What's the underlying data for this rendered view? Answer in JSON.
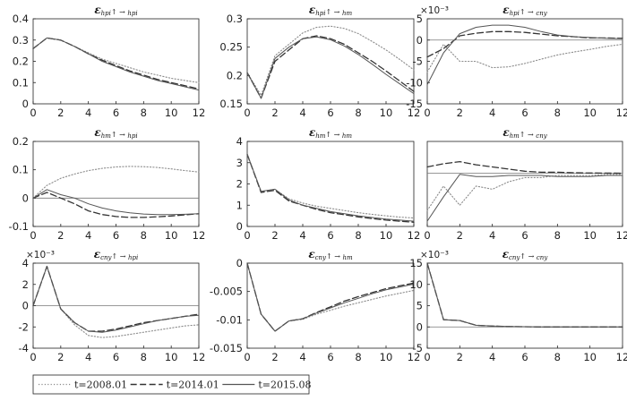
{
  "chart_data": [
    {
      "type": "line",
      "title": "ε_hpi↑→hpi",
      "title_sym": "ε",
      "title_sub": "hpi",
      "title_arrow": "↑ → ",
      "title_resp": "hpi",
      "xlim": [
        0,
        12
      ],
      "ylim": [
        0,
        0.4
      ],
      "yticks": [
        "0",
        "0.1",
        "0.2",
        "0.3",
        "0.4"
      ],
      "ytick_values": [
        0,
        0.1,
        0.2,
        0.3,
        0.4
      ],
      "xticks": [
        "0",
        "2",
        "4",
        "6",
        "8",
        "10",
        "12"
      ],
      "scale_label": "",
      "zero_line": false,
      "x": [
        0,
        1,
        2,
        3,
        4,
        5,
        6,
        7,
        8,
        9,
        10,
        11,
        12
      ],
      "series": [
        {
          "name": "t=2008.01",
          "values": [
            0.26,
            0.31,
            0.3,
            0.27,
            0.24,
            0.21,
            0.19,
            0.17,
            0.15,
            0.135,
            0.12,
            0.11,
            0.1
          ]
        },
        {
          "name": "t=2014.01",
          "values": [
            0.26,
            0.31,
            0.3,
            0.27,
            0.235,
            0.205,
            0.18,
            0.155,
            0.135,
            0.115,
            0.1,
            0.085,
            0.07
          ]
        },
        {
          "name": "t=2015.08",
          "values": [
            0.26,
            0.31,
            0.3,
            0.27,
            0.235,
            0.2,
            0.175,
            0.15,
            0.13,
            0.11,
            0.095,
            0.08,
            0.065
          ]
        }
      ]
    },
    {
      "type": "line",
      "title": "ε_hpi↑→hm",
      "title_sym": "ε",
      "title_sub": "hpi",
      "title_arrow": "↑ → ",
      "title_resp": "hm",
      "xlim": [
        0,
        12
      ],
      "ylim": [
        0.15,
        0.3
      ],
      "yticks": [
        "0.15",
        "0.2",
        "0.25",
        "0.3"
      ],
      "ytick_values": [
        0.15,
        0.2,
        0.25,
        0.3
      ],
      "xticks": [
        "0",
        "2",
        "4",
        "6",
        "8",
        "10",
        "12"
      ],
      "scale_label": "",
      "zero_line": false,
      "x": [
        0,
        1,
        2,
        3,
        4,
        5,
        6,
        7,
        8,
        9,
        10,
        11,
        12
      ],
      "series": [
        {
          "name": "t=2008.01",
          "values": [
            0.205,
            0.165,
            0.235,
            0.255,
            0.275,
            0.285,
            0.287,
            0.283,
            0.274,
            0.26,
            0.245,
            0.228,
            0.21
          ]
        },
        {
          "name": "t=2014.01",
          "values": [
            0.205,
            0.16,
            0.225,
            0.245,
            0.265,
            0.27,
            0.265,
            0.255,
            0.24,
            0.225,
            0.208,
            0.19,
            0.172
          ]
        },
        {
          "name": "t=2015.08",
          "values": [
            0.205,
            0.16,
            0.23,
            0.25,
            0.265,
            0.268,
            0.263,
            0.252,
            0.237,
            0.22,
            0.202,
            0.185,
            0.168
          ]
        }
      ]
    },
    {
      "type": "line",
      "title": "ε_hpi↑→cny",
      "title_sym": "ε",
      "title_sub": "hpi",
      "title_arrow": "↑ → ",
      "title_resp": "cny",
      "xlim": [
        0,
        12
      ],
      "ylim": [
        -15,
        5
      ],
      "yticks": [
        "-15",
        "-10",
        "-5",
        "0",
        "5"
      ],
      "ytick_values": [
        -15,
        -10,
        -5,
        0,
        5
      ],
      "xticks": [
        "0",
        "2",
        "4",
        "6",
        "8",
        "10",
        "12"
      ],
      "scale_label": "×10⁻³",
      "zero_line": true,
      "x": [
        0,
        1,
        2,
        3,
        4,
        5,
        6,
        7,
        8,
        9,
        10,
        11,
        12
      ],
      "series": [
        {
          "name": "t=2008.01",
          "values": [
            -7.5,
            -1,
            -5,
            -5,
            -6.5,
            -6.3,
            -5.5,
            -4.5,
            -3.5,
            -2.8,
            -2.2,
            -1.5,
            -1
          ]
        },
        {
          "name": "t=2014.01",
          "values": [
            -4,
            -2,
            1,
            1.6,
            2,
            2,
            1.8,
            1.4,
            1,
            0.8,
            0.5,
            0.5,
            0.4
          ]
        },
        {
          "name": "t=2015.08",
          "values": [
            -10.5,
            -3,
            1.5,
            3,
            3.5,
            3.5,
            3,
            2,
            1.2,
            0.8,
            0.6,
            0.4,
            0.3
          ]
        }
      ]
    },
    {
      "type": "line",
      "title": "ε_hm↑→hpi",
      "title_sym": "ε",
      "title_sub": "hm",
      "title_arrow": "↑ → ",
      "title_resp": "hpi",
      "xlim": [
        0,
        12
      ],
      "ylim": [
        -0.1,
        0.2
      ],
      "yticks": [
        "-0.1",
        "0",
        "0.1",
        "0.2"
      ],
      "ytick_values": [
        -0.1,
        0,
        0.1,
        0.2
      ],
      "xticks": [
        "0",
        "2",
        "4",
        "6",
        "8",
        "10",
        "12"
      ],
      "scale_label": "",
      "zero_line": true,
      "x": [
        0,
        1,
        2,
        3,
        4,
        5,
        6,
        7,
        8,
        9,
        10,
        11,
        12
      ],
      "series": [
        {
          "name": "t=2008.01",
          "values": [
            0,
            0.045,
            0.07,
            0.085,
            0.097,
            0.105,
            0.11,
            0.112,
            0.111,
            0.108,
            0.103,
            0.097,
            0.092
          ]
        },
        {
          "name": "t=2014.01",
          "values": [
            0,
            0.02,
            0,
            -0.02,
            -0.045,
            -0.058,
            -0.065,
            -0.068,
            -0.068,
            -0.066,
            -0.063,
            -0.059,
            -0.055
          ]
        },
        {
          "name": "t=2015.08",
          "values": [
            0,
            0.03,
            0.012,
            0,
            -0.02,
            -0.035,
            -0.045,
            -0.052,
            -0.056,
            -0.058,
            -0.058,
            -0.057,
            -0.055
          ]
        }
      ]
    },
    {
      "type": "line",
      "title": "ε_hm↑→hm",
      "title_sym": "ε",
      "title_sub": "hm",
      "title_arrow": "↑ → ",
      "title_resp": "hm",
      "xlim": [
        0,
        12
      ],
      "ylim": [
        0,
        4
      ],
      "yticks": [
        "0",
        "1",
        "2",
        "3",
        "4"
      ],
      "ytick_values": [
        0,
        1,
        2,
        3,
        4
      ],
      "xticks": [
        "0",
        "2",
        "4",
        "6",
        "8",
        "10",
        "12"
      ],
      "scale_label": "",
      "zero_line": false,
      "x": [
        0,
        1,
        2,
        3,
        4,
        5,
        6,
        7,
        8,
        9,
        10,
        11,
        12
      ],
      "series": [
        {
          "name": "t=2008.01",
          "values": [
            3.4,
            1.65,
            1.75,
            1.3,
            1.1,
            0.95,
            0.85,
            0.75,
            0.65,
            0.57,
            0.5,
            0.44,
            0.4
          ]
        },
        {
          "name": "t=2014.01",
          "values": [
            3.4,
            1.6,
            1.7,
            1.2,
            1.0,
            0.8,
            0.65,
            0.55,
            0.45,
            0.37,
            0.3,
            0.25,
            0.2
          ]
        },
        {
          "name": "t=2015.08",
          "values": [
            3.4,
            1.65,
            1.75,
            1.25,
            1.0,
            0.85,
            0.7,
            0.6,
            0.5,
            0.42,
            0.35,
            0.3,
            0.25
          ]
        }
      ]
    },
    {
      "type": "line",
      "title": "ε_hm↑→cny",
      "title_sym": "ε",
      "title_sub": "hm",
      "title_arrow": "↑ → ",
      "title_resp": "cny",
      "xlim": [
        0,
        12
      ],
      "ylim": [
        -0.05,
        0.03
      ],
      "yticks": [],
      "ytick_values": [],
      "xticks": [
        "0",
        "2",
        "4",
        "6",
        "8",
        "10",
        "12"
      ],
      "scale_label": "",
      "zero_line": true,
      "x": [
        0,
        1,
        2,
        3,
        4,
        5,
        6,
        7,
        8,
        9,
        10,
        11,
        12
      ],
      "series": [
        {
          "name": "t=2008.01",
          "values": [
            -0.035,
            -0.012,
            -0.03,
            -0.012,
            -0.015,
            -0.008,
            -0.004,
            -0.004,
            -0.002,
            -0.002,
            -0.002,
            -0.001,
            -0.001
          ]
        },
        {
          "name": "t=2014.01",
          "values": [
            0.006,
            0.009,
            0.011,
            0.008,
            0.006,
            0.004,
            0.002,
            0.001,
            0.001,
            0.0005,
            0.0003,
            0.0002,
            0.0001
          ]
        },
        {
          "name": "t=2015.08",
          "values": [
            -0.045,
            -0.022,
            -0.001,
            -0.003,
            -0.003,
            -0.002,
            -0.002,
            -0.002,
            -0.003,
            -0.003,
            -0.003,
            -0.002,
            -0.002
          ]
        }
      ]
    },
    {
      "type": "line",
      "title": "ε_cny↑→hpi",
      "title_sym": "ε",
      "title_sub": "cny",
      "title_arrow": "↑ → ",
      "title_resp": "hpi",
      "xlim": [
        0,
        12
      ],
      "ylim": [
        -4,
        4
      ],
      "yticks": [
        "-4",
        "-2",
        "0",
        "2",
        "4"
      ],
      "ytick_values": [
        -4,
        -2,
        0,
        2,
        4
      ],
      "xticks": [
        "0",
        "2",
        "4",
        "6",
        "8",
        "10",
        "12"
      ],
      "scale_label": "×10⁻³",
      "zero_line": true,
      "x": [
        0,
        1,
        2,
        3,
        4,
        5,
        6,
        7,
        8,
        9,
        10,
        11,
        12
      ],
      "series": [
        {
          "name": "t=2008.01",
          "values": [
            0,
            3.7,
            -0.3,
            -1.8,
            -2.8,
            -3.0,
            -2.9,
            -2.7,
            -2.5,
            -2.3,
            -2.1,
            -1.9,
            -1.8
          ]
        },
        {
          "name": "t=2014.01",
          "values": [
            0,
            3.7,
            -0.3,
            -1.6,
            -2.4,
            -2.4,
            -2.2,
            -1.9,
            -1.6,
            -1.4,
            -1.2,
            -1.0,
            -0.8
          ]
        },
        {
          "name": "t=2015.08",
          "values": [
            0,
            3.7,
            -0.3,
            -1.6,
            -2.4,
            -2.5,
            -2.3,
            -2.0,
            -1.7,
            -1.4,
            -1.2,
            -1.0,
            -0.9
          ]
        }
      ]
    },
    {
      "type": "line",
      "title": "ε_cny↑→hm",
      "title_sym": "ε",
      "title_sub": "cny",
      "title_arrow": "↑ → ",
      "title_resp": "hm",
      "xlim": [
        0,
        12
      ],
      "ylim": [
        -0.015,
        0
      ],
      "yticks": [
        "-0.015",
        "-0.01",
        "-0.005",
        "0"
      ],
      "ytick_values": [
        -0.015,
        -0.01,
        -0.005,
        0
      ],
      "xticks": [
        "0",
        "2",
        "4",
        "6",
        "8",
        "10",
        "12"
      ],
      "scale_label": "",
      "zero_line": false,
      "x": [
        0,
        1,
        2,
        3,
        4,
        5,
        6,
        7,
        8,
        9,
        10,
        11,
        12
      ],
      "series": [
        {
          "name": "t=2008.01",
          "values": [
            0,
            -0.009,
            -0.012,
            -0.0102,
            -0.0099,
            -0.009,
            -0.0083,
            -0.0076,
            -0.007,
            -0.0064,
            -0.0058,
            -0.0053,
            -0.0048
          ]
        },
        {
          "name": "t=2014.01",
          "values": [
            0,
            -0.009,
            -0.012,
            -0.0102,
            -0.0098,
            -0.0087,
            -0.0077,
            -0.0067,
            -0.0059,
            -0.0052,
            -0.0045,
            -0.004,
            -0.0035
          ]
        },
        {
          "name": "t=2015.08",
          "values": [
            0,
            -0.009,
            -0.012,
            -0.0102,
            -0.0098,
            -0.0088,
            -0.0079,
            -0.007,
            -0.0062,
            -0.0054,
            -0.0047,
            -0.0042,
            -0.0037
          ]
        }
      ]
    },
    {
      "type": "line",
      "title": "ε_cny↑→cny",
      "title_sym": "ε",
      "title_sub": "cny",
      "title_arrow": "↑ → ",
      "title_resp": "cny",
      "xlim": [
        0,
        12
      ],
      "ylim": [
        -5,
        15
      ],
      "yticks": [
        "-5",
        "0",
        "5",
        "10",
        "15"
      ],
      "ytick_values": [
        -5,
        0,
        5,
        10,
        15
      ],
      "xticks": [
        "0",
        "2",
        "4",
        "6",
        "8",
        "10",
        "12"
      ],
      "scale_label": "×10⁻³",
      "zero_line": true,
      "x": [
        0,
        1,
        2,
        3,
        4,
        5,
        6,
        7,
        8,
        9,
        10,
        11,
        12
      ],
      "series": [
        {
          "name": "t=2008.01",
          "values": [
            15,
            1.7,
            1.5,
            0.4,
            0.2,
            0.1,
            0.05,
            0,
            0,
            0,
            0,
            0,
            0
          ]
        },
        {
          "name": "t=2014.01",
          "values": [
            15,
            1.7,
            1.5,
            0.4,
            0.2,
            0.1,
            0.05,
            0,
            0,
            0,
            0,
            0,
            0
          ]
        },
        {
          "name": "t=2015.08",
          "values": [
            15,
            1.7,
            1.5,
            0.4,
            0.2,
            0.1,
            0.05,
            0,
            0,
            0,
            0,
            0,
            0
          ]
        }
      ]
    }
  ],
  "legend": {
    "entries": [
      {
        "label": "t=2008.01",
        "style": "dotted"
      },
      {
        "label": "t=2014.01",
        "style": "dashed"
      },
      {
        "label": "t=2015.08",
        "style": "solid"
      }
    ]
  }
}
